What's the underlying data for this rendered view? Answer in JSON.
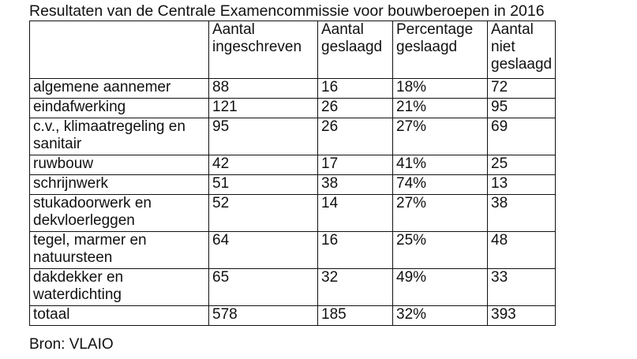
{
  "title": "Resultaten van de Centrale Examencommissie voor bouwberoepen in 2016",
  "table": {
    "headers": [
      [],
      [
        "Aantal",
        "ingeschreven"
      ],
      [
        "Aantal",
        "geslaagd"
      ],
      [
        "Percentage",
        "geslaagd"
      ],
      [
        "Aantal",
        "niet",
        "geslaagd"
      ]
    ],
    "rows": [
      {
        "cells": [
          [
            "algemene aannemer"
          ],
          [
            "88"
          ],
          [
            "16"
          ],
          [
            "18%"
          ],
          [
            "72"
          ]
        ]
      },
      {
        "cells": [
          [
            "eindafwerking"
          ],
          [
            "121"
          ],
          [
            "26"
          ],
          [
            "21%"
          ],
          [
            "95"
          ]
        ]
      },
      {
        "cells": [
          [
            "c.v., klimaatregeling en",
            "sanitair"
          ],
          [
            "95"
          ],
          [
            "26"
          ],
          [
            "27%"
          ],
          [
            "69"
          ]
        ]
      },
      {
        "cells": [
          [
            "ruwbouw"
          ],
          [
            "42"
          ],
          [
            "17"
          ],
          [
            "41%"
          ],
          [
            "25"
          ]
        ]
      },
      {
        "cells": [
          [
            "schrijnwerk"
          ],
          [
            "51"
          ],
          [
            "38"
          ],
          [
            "74%"
          ],
          [
            "13"
          ]
        ]
      },
      {
        "cells": [
          [
            "stukadoorwerk en",
            "dekvloerleggen"
          ],
          [
            "52"
          ],
          [
            "14"
          ],
          [
            "27%"
          ],
          [
            "38"
          ]
        ]
      },
      {
        "cells": [
          [
            "tegel, marmer en",
            "natuursteen"
          ],
          [
            "64"
          ],
          [
            "16"
          ],
          [
            "25%"
          ],
          [
            "48"
          ]
        ]
      },
      {
        "cells": [
          [
            "dakdekker en",
            "waterdichting"
          ],
          [
            "65"
          ],
          [
            "32"
          ],
          [
            "49%"
          ],
          [
            "33"
          ]
        ]
      },
      {
        "cells": [
          [
            "totaal"
          ],
          [
            "578"
          ],
          [
            "185"
          ],
          [
            "32%"
          ],
          [
            "393"
          ]
        ]
      }
    ]
  },
  "source": "Bron: VLAIO"
}
